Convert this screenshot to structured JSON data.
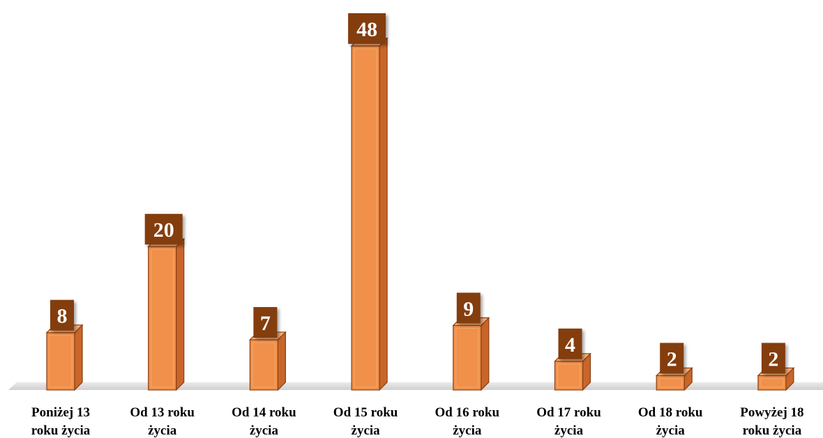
{
  "chart_data": {
    "type": "bar",
    "title": "",
    "xlabel": "",
    "ylabel": "",
    "categories": [
      [
        "Poniżej 13",
        "roku życia"
      ],
      [
        "Od 13 roku",
        "życia"
      ],
      [
        "Od 14 roku",
        "życia"
      ],
      [
        "Od 15 roku",
        "życia"
      ],
      [
        "Od 16 roku",
        "życia"
      ],
      [
        "Od 17 roku",
        "życia"
      ],
      [
        "Od 18 roku",
        "życia"
      ],
      [
        "Powyżej 18",
        "roku życia"
      ]
    ],
    "values": [
      8,
      20,
      7,
      48,
      9,
      4,
      2,
      2
    ],
    "data_labels": [
      "8",
      "20",
      "7",
      "48",
      "9",
      "4",
      "2",
      "2"
    ],
    "ylim": [
      0,
      48
    ],
    "grid": false,
    "legend": "none",
    "style": "3d-column",
    "colors": {
      "bar_front": "#f0904a",
      "bar_side": "#c8662a",
      "bar_top": "#f6b07a",
      "bar_outline": "#8a3e12",
      "label_box": "#843c0c",
      "floor": "#d6d6d6"
    }
  }
}
